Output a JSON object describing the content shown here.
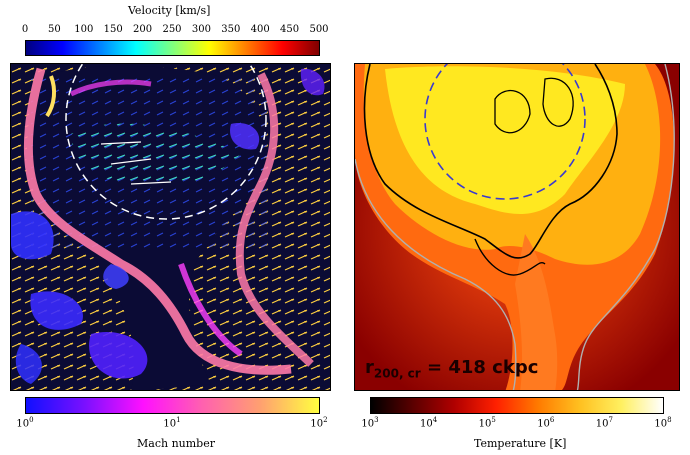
{
  "velocity_colorbar": {
    "label": "Velocity [km/s]",
    "ticks": [
      "0",
      "50",
      "100",
      "150",
      "200",
      "250",
      "300",
      "350",
      "400",
      "450",
      "500"
    ]
  },
  "mach_colorbar": {
    "label": "Mach number",
    "tick_base": "10",
    "tick_exponents": [
      "0",
      "1",
      "2"
    ]
  },
  "temperature_colorbar": {
    "label": "Temperature [K]",
    "tick_base": "10",
    "tick_exponents": [
      "3",
      "4",
      "5",
      "6",
      "7",
      "8"
    ]
  },
  "temperature_panel": {
    "radius_label_main": "r",
    "radius_label_sub": "200, cr",
    "radius_label_value": " = 418 ckpc"
  },
  "colors": {
    "panel_dark_blue": "#0a0a3a",
    "mach_low": "#2020ff",
    "mach_mid": "#ff40ff",
    "mach_high": "#ffee55",
    "temp_hot": "#ffee20",
    "temp_cold": "#7a0000",
    "contour_black": "#000000",
    "contour_grey": "#b0b0b0",
    "virial_circle": "#3a3ad0"
  },
  "icons": {
    "mach_panel_arrows": "arrow-field-icon"
  }
}
